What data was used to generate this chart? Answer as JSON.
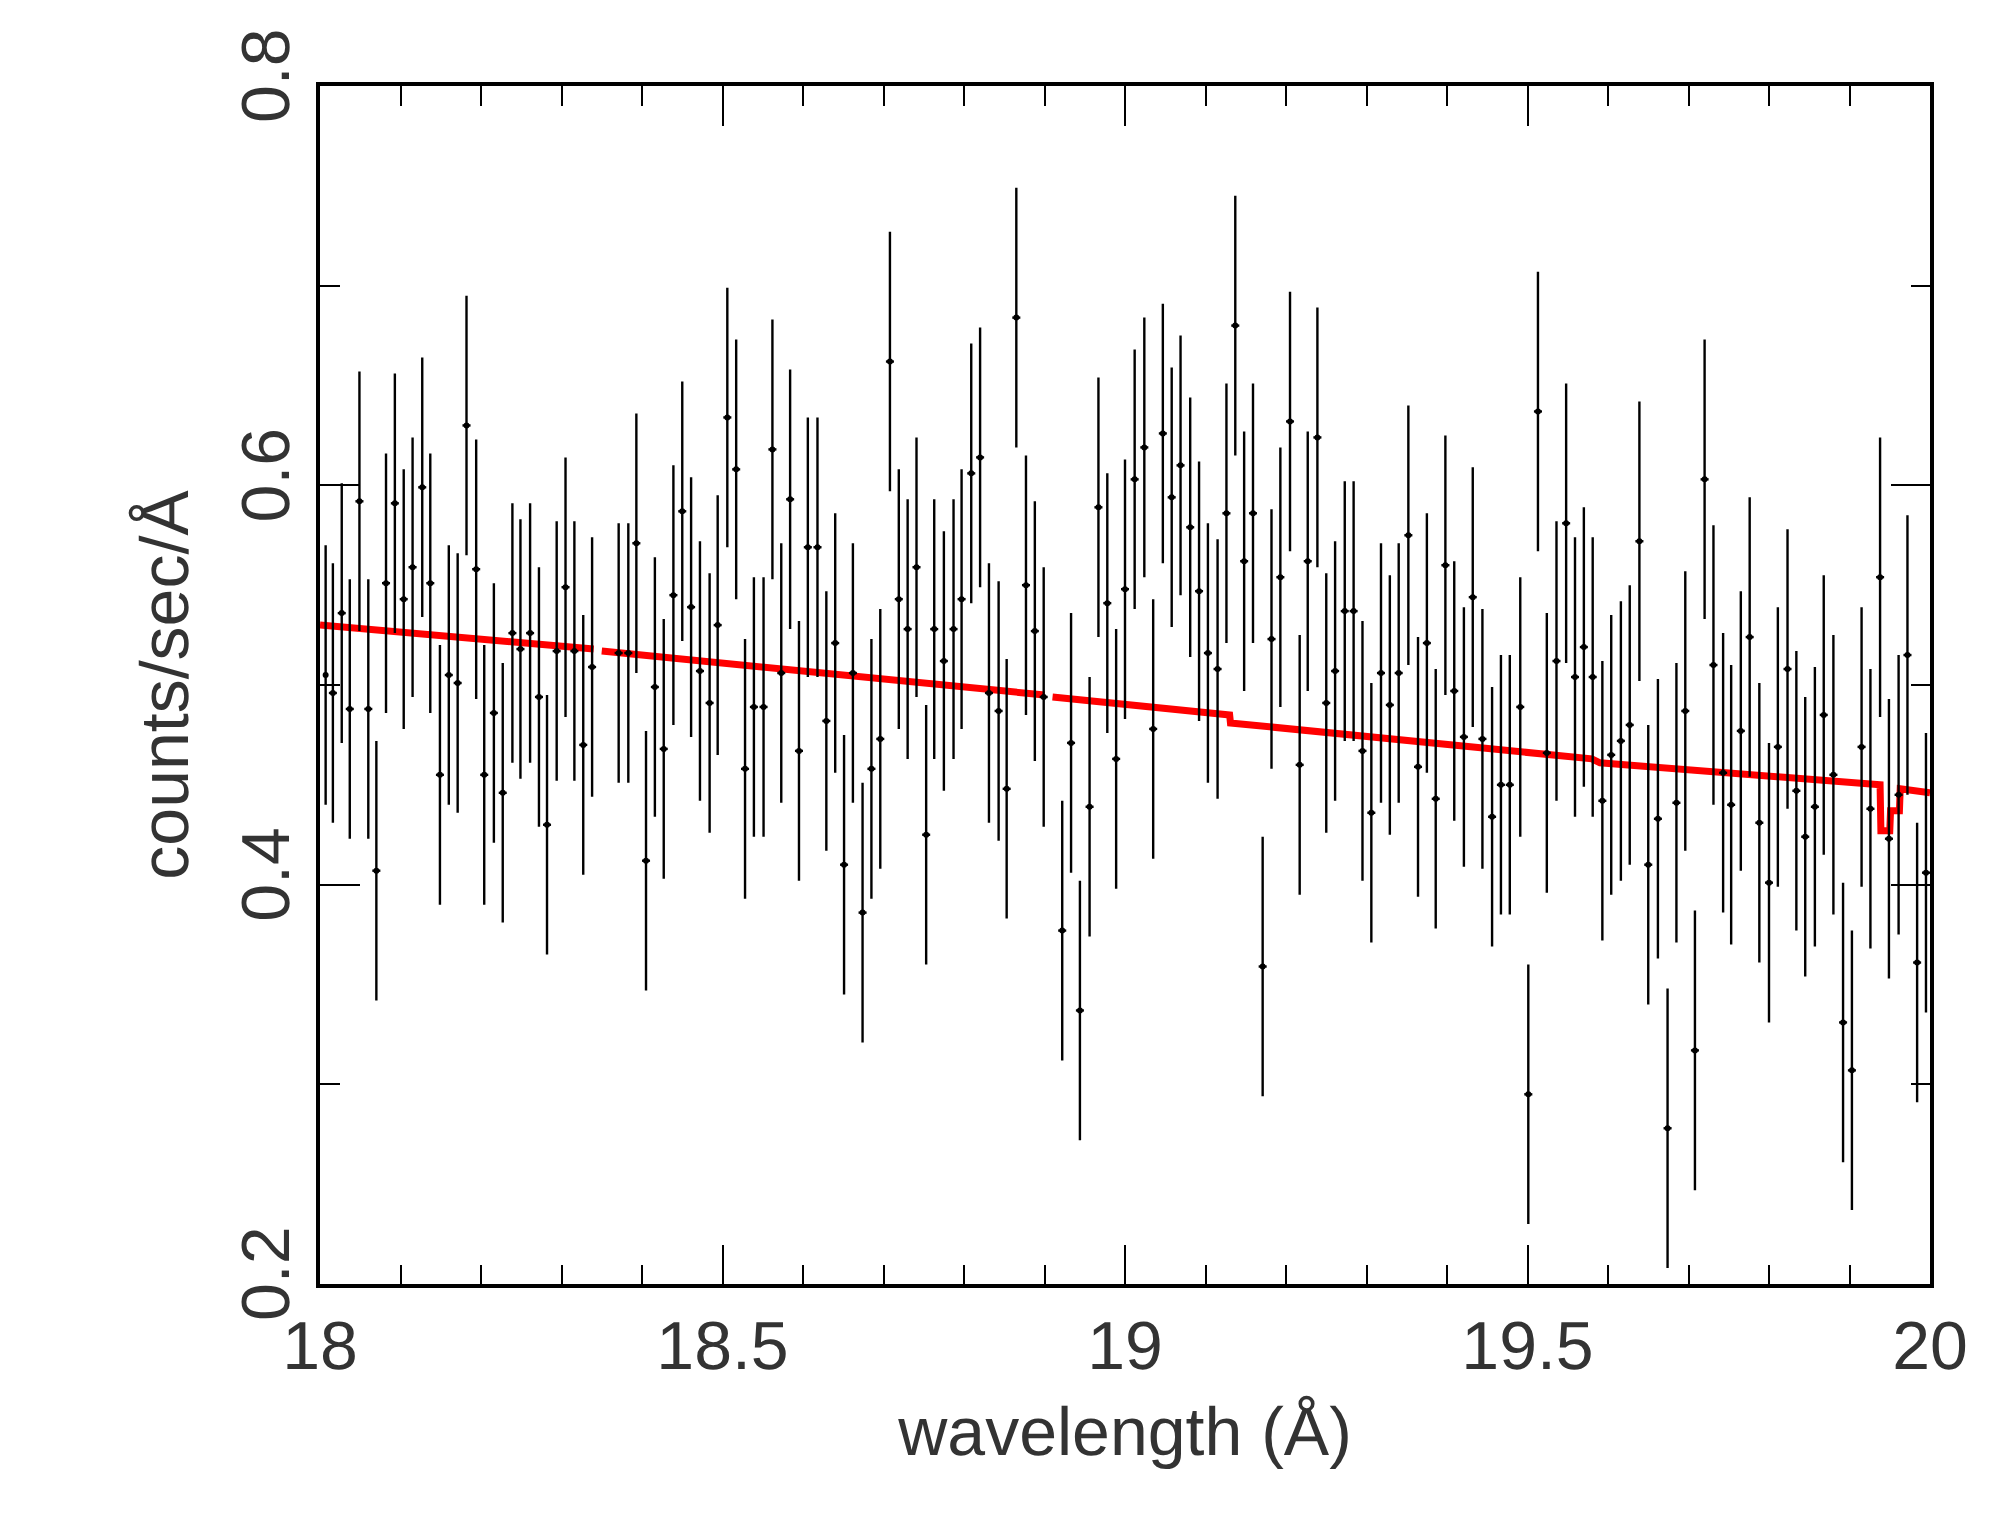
{
  "chart_data": {
    "type": "scatter",
    "xlabel": "wavelength (Å)",
    "ylabel": "counts/sec/Å",
    "xlim": [
      18,
      20
    ],
    "ylim": [
      0.2,
      0.8
    ],
    "xticks": [
      18,
      {
        "value": 18.1,
        "label": null
      },
      {
        "value": 18.2,
        "label": null
      },
      {
        "value": 18.3,
        "label": null
      },
      {
        "value": 18.4,
        "label": null
      },
      18.5,
      {
        "value": 18.6,
        "label": null
      },
      {
        "value": 18.7,
        "label": null
      },
      {
        "value": 18.8,
        "label": null
      },
      {
        "value": 18.9,
        "label": null
      },
      19,
      {
        "value": 19.1,
        "label": null
      },
      {
        "value": 19.2,
        "label": null
      },
      {
        "value": 19.3,
        "label": null
      },
      {
        "value": 19.4,
        "label": null
      },
      19.5,
      {
        "value": 19.6,
        "label": null
      },
      {
        "value": 19.7,
        "label": null
      },
      {
        "value": 19.8,
        "label": null
      },
      {
        "value": 19.9,
        "label": null
      },
      20
    ],
    "yticks": [
      0.2,
      {
        "value": 0.3,
        "label": null
      },
      0.4,
      {
        "value": 0.5,
        "label": null
      },
      0.6,
      {
        "value": 0.7,
        "label": null
      },
      0.8
    ],
    "marker": "circle",
    "series": [
      {
        "color": "#000000",
        "x": [
          18.007,
          18.016,
          18.027,
          18.037,
          18.049,
          18.06,
          18.07,
          18.082,
          18.093,
          18.104,
          18.115,
          18.127,
          18.137,
          18.149,
          18.16,
          18.171,
          18.182,
          18.194,
          18.204,
          18.216,
          18.227,
          18.239,
          18.249,
          18.261,
          18.272,
          18.282,
          18.294,
          18.305,
          18.316,
          18.327,
          18.338,
          18.371,
          18.383,
          18.393,
          18.405,
          18.416,
          18.427,
          18.439,
          18.45,
          18.461,
          18.472,
          18.484,
          18.494,
          18.506,
          18.517,
          18.528,
          18.539,
          18.551,
          18.562,
          18.573,
          18.584,
          18.595,
          18.606,
          18.618,
          18.629,
          18.64,
          18.651,
          18.662,
          18.674,
          18.685,
          18.696,
          18.708,
          18.719,
          18.73,
          18.741,
          18.753,
          18.763,
          18.775,
          18.787,
          18.797,
          18.809,
          18.82,
          18.831,
          18.843,
          18.853,
          18.865,
          18.877,
          18.888,
          18.899,
          18.922,
          18.933,
          18.944,
          18.956,
          18.967,
          18.978,
          18.989,
          19.0,
          19.012,
          19.024,
          19.035,
          19.047,
          19.058,
          19.069,
          19.081,
          19.092,
          19.103,
          19.115,
          19.126,
          19.137,
          19.148,
          19.159,
          19.171,
          19.182,
          19.193,
          19.205,
          19.217,
          19.227,
          19.239,
          19.25,
          19.261,
          19.273,
          19.284,
          19.295,
          19.306,
          19.318,
          19.329,
          19.34,
          19.352,
          19.364,
          19.375,
          19.386,
          19.398,
          19.409,
          19.421,
          19.432,
          19.444,
          19.456,
          19.467,
          19.478,
          19.491,
          19.501,
          19.513,
          19.524,
          19.536,
          19.548,
          19.559,
          19.57,
          19.581,
          19.593,
          19.604,
          19.616,
          19.627,
          19.639,
          19.65,
          19.662,
          19.674,
          19.685,
          19.696,
          19.708,
          19.72,
          19.731,
          19.743,
          19.753,
          19.765,
          19.776,
          19.788,
          19.8,
          19.811,
          19.823,
          19.834,
          19.845,
          19.857,
          19.868,
          19.88,
          19.892,
          19.903,
          19.915,
          19.926,
          19.938,
          19.949,
          19.961,
          19.972,
          19.984,
          19.995
        ],
        "values": [
          0.505,
          0.496,
          0.536,
          0.488,
          0.592,
          0.488,
          0.407,
          0.551,
          0.591,
          0.543,
          0.559,
          0.599,
          0.551,
          0.455,
          0.505,
          0.501,
          0.63,
          0.558,
          0.455,
          0.486,
          0.446,
          0.526,
          0.518,
          0.526,
          0.494,
          0.43,
          0.517,
          0.549,
          0.517,
          0.47,
          0.509,
          0.516,
          0.516,
          0.571,
          0.412,
          0.499,
          0.468,
          0.545,
          0.587,
          0.539,
          0.507,
          0.491,
          0.53,
          0.634,
          0.608,
          0.458,
          0.489,
          0.489,
          0.618,
          0.506,
          0.593,
          0.467,
          0.569,
          0.569,
          0.482,
          0.521,
          0.41,
          0.506,
          0.386,
          0.458,
          0.473,
          0.662,
          0.543,
          0.528,
          0.559,
          0.425,
          0.528,
          0.512,
          0.528,
          0.543,
          0.606,
          0.614,
          0.496,
          0.487,
          0.448,
          0.684,
          0.55,
          0.527,
          0.494,
          0.377,
          0.471,
          0.337,
          0.439,
          0.589,
          0.541,
          0.463,
          0.548,
          0.603,
          0.619,
          0.478,
          0.626,
          0.594,
          0.61,
          0.579,
          0.547,
          0.516,
          0.508,
          0.586,
          0.68,
          0.562,
          0.586,
          0.359,
          0.523,
          0.554,
          0.632,
          0.46,
          0.562,
          0.624,
          0.491,
          0.507,
          0.537,
          0.537,
          0.467,
          0.436,
          0.506,
          0.49,
          0.506,
          0.575,
          0.459,
          0.521,
          0.443,
          0.56,
          0.497,
          0.474,
          0.544,
          0.473,
          0.434,
          0.45,
          0.45,
          0.489,
          0.295,
          0.637,
          0.466,
          0.512,
          0.581,
          0.504,
          0.519,
          0.504,
          0.442,
          0.465,
          0.472,
          0.48,
          0.572,
          0.41,
          0.433,
          0.278,
          0.441,
          0.487,
          0.317,
          0.603,
          0.51,
          0.456,
          0.44,
          0.477,
          0.524,
          0.431,
          0.401,
          0.469,
          0.508,
          0.447,
          0.424,
          0.439,
          0.485,
          0.455,
          0.331,
          0.307,
          0.469,
          0.438,
          0.554,
          0.423,
          0.445,
          0.515,
          0.361,
          0.406
        ],
        "errors": [
          0.065,
          0.065,
          0.065,
          0.065,
          0.065,
          0.065,
          0.065,
          0.065,
          0.065,
          0.065,
          0.065,
          0.065,
          0.065,
          0.065,
          0.065,
          0.065,
          0.065,
          0.065,
          0.065,
          0.065,
          0.065,
          0.065,
          0.065,
          0.065,
          0.065,
          0.065,
          0.065,
          0.065,
          0.065,
          0.065,
          0.065,
          0.065,
          0.065,
          0.065,
          0.065,
          0.065,
          0.065,
          0.065,
          0.065,
          0.065,
          0.065,
          0.065,
          0.065,
          0.065,
          0.065,
          0.065,
          0.065,
          0.065,
          0.065,
          0.065,
          0.065,
          0.065,
          0.065,
          0.065,
          0.065,
          0.065,
          0.065,
          0.065,
          0.065,
          0.065,
          0.065,
          0.065,
          0.065,
          0.065,
          0.065,
          0.065,
          0.065,
          0.065,
          0.065,
          0.065,
          0.065,
          0.065,
          0.065,
          0.065,
          0.065,
          0.065,
          0.065,
          0.065,
          0.065,
          0.065,
          0.065,
          0.065,
          0.065,
          0.065,
          0.065,
          0.065,
          0.065,
          0.065,
          0.065,
          0.065,
          0.065,
          0.065,
          0.065,
          0.065,
          0.065,
          0.065,
          0.065,
          0.065,
          0.065,
          0.065,
          0.065,
          0.065,
          0.065,
          0.065,
          0.065,
          0.065,
          0.065,
          0.065,
          0.065,
          0.065,
          0.065,
          0.065,
          0.065,
          0.065,
          0.065,
          0.065,
          0.065,
          0.065,
          0.065,
          0.065,
          0.065,
          0.065,
          0.065,
          0.065,
          0.065,
          0.065,
          0.065,
          0.065,
          0.065,
          0.065,
          0.065,
          0.07,
          0.07,
          0.07,
          0.07,
          0.07,
          0.07,
          0.07,
          0.07,
          0.07,
          0.07,
          0.07,
          0.07,
          0.07,
          0.07,
          0.07,
          0.07,
          0.07,
          0.07,
          0.07,
          0.07,
          0.07,
          0.07,
          0.07,
          0.07,
          0.07,
          0.07,
          0.07,
          0.07,
          0.07,
          0.07,
          0.07,
          0.07,
          0.07,
          0.07,
          0.07,
          0.07,
          0.07,
          0.07,
          0.07,
          0.07,
          0.07,
          0.07,
          0.07
        ],
        "xerrors": [
          null,
          0.005,
          0.005,
          0.005,
          0.005,
          0.005,
          0.005,
          0.005,
          0.005,
          0.005,
          0.005,
          0.005,
          0.005,
          0.005,
          0.005,
          0.005,
          0.005,
          0.005,
          0.005,
          0.005,
          0.005,
          0.005,
          0.005,
          0.005,
          0.005,
          0.005,
          0.005,
          0.005,
          0.005,
          0.005,
          0.005,
          0.005,
          0.005,
          0.005,
          0.005,
          0.005,
          0.005,
          0.005,
          0.005,
          0.005,
          0.005,
          0.005,
          0.005,
          0.005,
          0.005,
          0.005,
          0.005,
          0.005,
          0.005,
          0.005,
          0.005,
          0.005,
          0.005,
          0.005,
          0.005,
          0.005,
          0.005,
          0.005,
          0.005,
          0.005,
          0.005,
          0.005,
          0.005,
          0.005,
          0.005,
          0.005,
          0.005,
          0.005,
          0.005,
          0.005,
          0.005,
          0.005,
          0.005,
          0.005,
          0.005,
          0.005,
          0.005,
          0.005,
          0.005,
          0.005,
          0.005,
          0.005,
          0.005,
          0.005,
          0.005,
          0.005,
          0.005,
          0.005,
          0.005,
          0.005,
          0.005,
          0.005,
          0.005,
          0.005,
          0.005,
          0.005,
          0.005,
          0.005,
          0.005,
          0.005,
          0.005,
          0.005,
          0.005,
          0.005,
          0.005,
          0.005,
          0.005,
          0.005,
          0.005,
          0.005,
          0.005,
          0.005,
          0.005,
          0.005,
          0.005,
          0.005,
          0.005,
          0.005,
          0.005,
          0.005,
          0.005,
          0.005,
          0.005,
          0.005,
          0.005,
          0.005,
          0.005,
          0.005,
          0.005,
          0.005,
          0.005,
          0.005,
          0.005,
          0.005,
          0.005,
          0.005,
          0.005,
          0.005,
          0.005,
          0.005,
          0.005,
          0.005,
          0.005,
          0.005,
          0.005,
          0.005,
          0.005,
          0.005,
          0.005,
          0.005,
          0.005,
          0.005,
          0.005,
          0.005,
          0.005,
          0.005,
          0.005,
          0.005,
          0.005,
          0.005,
          0.005,
          0.005,
          0.005,
          0.005,
          0.005,
          0.005,
          0.005,
          0.005,
          0.005,
          0.005,
          0.005,
          0.005,
          0.005,
          0.005
        ]
      },
      {
        "type": "line",
        "color": "#ff0000",
        "marker": "none",
        "line_style": "solid",
        "x": [
          18.0,
          18.34,
          18.345,
          18.35,
          18.9,
          18.905,
          18.91,
          19.13,
          19.131,
          19.58,
          19.59,
          19.938,
          19.939,
          19.95,
          19.951,
          19.962,
          19.963,
          20.0
        ],
        "values": [
          0.53,
          0.518,
          null,
          0.517,
          0.495,
          null,
          0.494,
          0.485,
          0.481,
          0.463,
          0.461,
          0.45,
          0.427,
          0.427,
          0.437,
          0.437,
          0.448,
          0.446
        ]
      }
    ]
  }
}
